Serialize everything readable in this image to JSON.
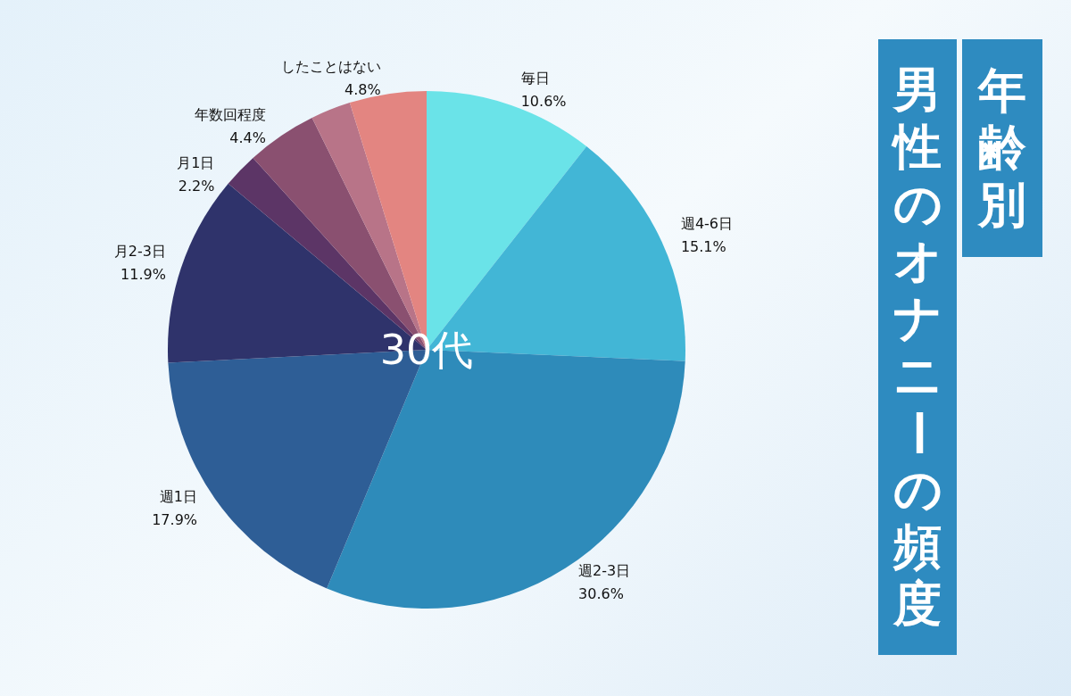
{
  "chart_data": {
    "type": "pie",
    "title": "男性のオナニーの頻度",
    "subtitle": "年齢別",
    "annotations": [
      "30代"
    ],
    "categories": [
      "毎日",
      "週4-6日",
      "週2-3日",
      "週1日",
      "月2-3日",
      "月1日",
      "年数回程度",
      null,
      "したことはない"
    ],
    "values": [
      10.6,
      15.1,
      30.6,
      17.9,
      11.9,
      2.2,
      4.4,
      2.5,
      4.8
    ],
    "colors": [
      "#6ae3e8",
      "#42b6d6",
      "#2e8bba",
      "#2e5e96",
      "#2f336b",
      "#5c3566",
      "#8a5070",
      "#b87488",
      "#e38581"
    ],
    "value_labels": [
      "10.6%",
      "15.1%",
      "30.6%",
      "17.9%",
      "11.9%",
      "2.2%",
      "4.4%",
      null,
      "4.8%"
    ],
    "legend": false
  }
}
